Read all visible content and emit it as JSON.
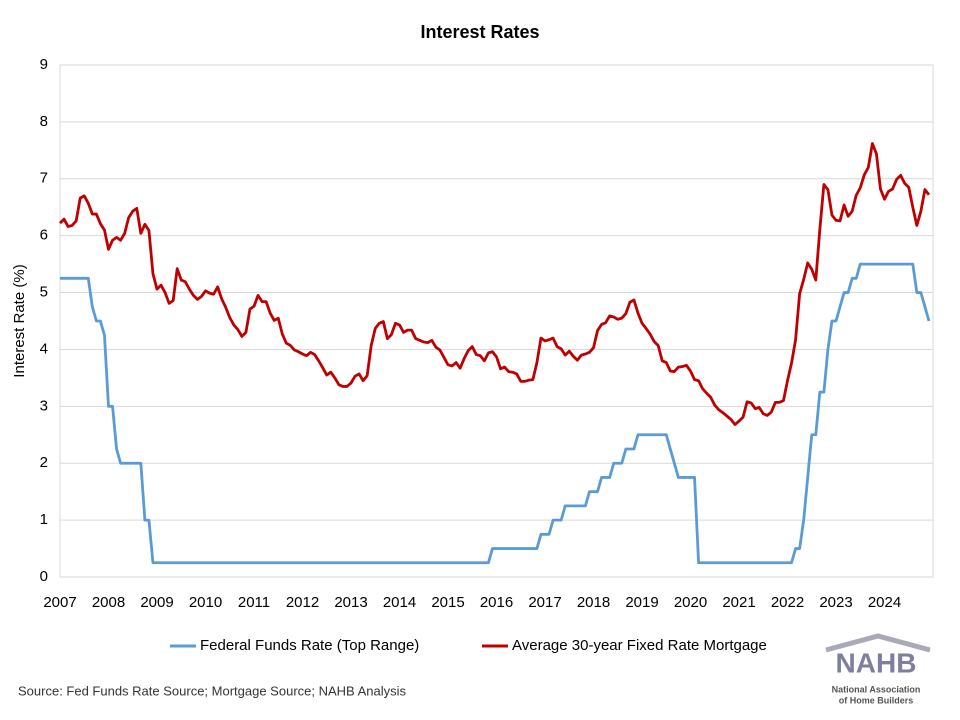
{
  "chart_data": {
    "type": "line",
    "title": "Interest Rates",
    "y_label": "Interest Rate (%)",
    "source": "Source: Fed Funds Rate Source; Mortgage Source; NAHB Analysis",
    "categories": [
      "2007",
      null,
      null,
      null,
      null,
      null,
      null,
      null,
      null,
      null,
      null,
      null,
      "2008",
      null,
      null,
      null,
      null,
      null,
      null,
      null,
      null,
      null,
      null,
      null,
      "2009",
      null,
      null,
      null,
      null,
      null,
      null,
      null,
      null,
      null,
      null,
      null,
      "2010",
      null,
      null,
      null,
      null,
      null,
      null,
      null,
      null,
      null,
      null,
      null,
      "2011",
      null,
      null,
      null,
      null,
      null,
      null,
      null,
      null,
      null,
      null,
      null,
      "2012",
      null,
      null,
      null,
      null,
      null,
      null,
      null,
      null,
      null,
      null,
      null,
      "2013",
      null,
      null,
      null,
      null,
      null,
      null,
      null,
      null,
      null,
      null,
      null,
      "2014",
      null,
      null,
      null,
      null,
      null,
      null,
      null,
      null,
      null,
      null,
      null,
      "2015",
      null,
      null,
      null,
      null,
      null,
      null,
      null,
      null,
      null,
      null,
      null,
      "2016",
      null,
      null,
      null,
      null,
      null,
      null,
      null,
      null,
      null,
      null,
      null,
      "2017",
      null,
      null,
      null,
      null,
      null,
      null,
      null,
      null,
      null,
      null,
      null,
      "2018",
      null,
      null,
      null,
      null,
      null,
      null,
      null,
      null,
      null,
      null,
      null,
      "2019",
      null,
      null,
      null,
      null,
      null,
      null,
      null,
      null,
      null,
      null,
      null,
      "2020",
      null,
      null,
      null,
      null,
      null,
      null,
      null,
      null,
      null,
      null,
      null,
      "2021",
      null,
      null,
      null,
      null,
      null,
      null,
      null,
      null,
      null,
      null,
      null,
      "2022",
      null,
      null,
      null,
      null,
      null,
      null,
      null,
      null,
      null,
      null,
      null,
      "2023",
      null,
      null,
      null,
      null,
      null,
      null,
      null,
      null,
      null,
      null,
      null,
      "2024",
      null,
      null,
      null,
      null,
      null,
      null,
      null,
      null,
      null,
      null,
      null
    ],
    "series": [
      {
        "name": "Federal Funds Rate (Top Range)",
        "color": "#5b9bd5",
        "values": [
          5.25,
          5.25,
          5.25,
          5.25,
          5.25,
          5.25,
          5.25,
          5.25,
          4.75,
          4.5,
          4.5,
          4.25,
          3.0,
          3.0,
          2.25,
          2.0,
          2.0,
          2.0,
          2.0,
          2.0,
          2.0,
          1.0,
          1.0,
          0.25,
          0.25,
          0.25,
          0.25,
          0.25,
          0.25,
          0.25,
          0.25,
          0.25,
          0.25,
          0.25,
          0.25,
          0.25,
          0.25,
          0.25,
          0.25,
          0.25,
          0.25,
          0.25,
          0.25,
          0.25,
          0.25,
          0.25,
          0.25,
          0.25,
          0.25,
          0.25,
          0.25,
          0.25,
          0.25,
          0.25,
          0.25,
          0.25,
          0.25,
          0.25,
          0.25,
          0.25,
          0.25,
          0.25,
          0.25,
          0.25,
          0.25,
          0.25,
          0.25,
          0.25,
          0.25,
          0.25,
          0.25,
          0.25,
          0.25,
          0.25,
          0.25,
          0.25,
          0.25,
          0.25,
          0.25,
          0.25,
          0.25,
          0.25,
          0.25,
          0.25,
          0.25,
          0.25,
          0.25,
          0.25,
          0.25,
          0.25,
          0.25,
          0.25,
          0.25,
          0.25,
          0.25,
          0.25,
          0.25,
          0.25,
          0.25,
          0.25,
          0.25,
          0.25,
          0.25,
          0.25,
          0.25,
          0.25,
          0.25,
          0.5,
          0.5,
          0.5,
          0.5,
          0.5,
          0.5,
          0.5,
          0.5,
          0.5,
          0.5,
          0.5,
          0.5,
          0.75,
          0.75,
          0.75,
          1.0,
          1.0,
          1.0,
          1.25,
          1.25,
          1.25,
          1.25,
          1.25,
          1.25,
          1.5,
          1.5,
          1.5,
          1.75,
          1.75,
          1.75,
          2.0,
          2.0,
          2.0,
          2.25,
          2.25,
          2.25,
          2.5,
          2.5,
          2.5,
          2.5,
          2.5,
          2.5,
          2.5,
          2.5,
          2.25,
          2.0,
          1.75,
          1.75,
          1.75,
          1.75,
          1.75,
          0.25,
          0.25,
          0.25,
          0.25,
          0.25,
          0.25,
          0.25,
          0.25,
          0.25,
          0.25,
          0.25,
          0.25,
          0.25,
          0.25,
          0.25,
          0.25,
          0.25,
          0.25,
          0.25,
          0.25,
          0.25,
          0.25,
          0.25,
          0.25,
          0.5,
          0.5,
          1.0,
          1.75,
          2.5,
          2.5,
          3.25,
          3.25,
          4.0,
          4.5,
          4.5,
          4.75,
          5.0,
          5.0,
          5.25,
          5.25,
          5.5,
          5.5,
          5.5,
          5.5,
          5.5,
          5.5,
          5.5,
          5.5,
          5.5,
          5.5,
          5.5,
          5.5,
          5.5,
          5.5,
          5.0,
          5.0,
          4.75,
          4.5
        ]
      },
      {
        "name": "Average 30-year Fixed Rate Mortgage",
        "color": "#c00000",
        "values": [
          6.22,
          6.29,
          6.16,
          6.18,
          6.26,
          6.66,
          6.7,
          6.57,
          6.38,
          6.38,
          6.21,
          6.1,
          5.76,
          5.92,
          5.97,
          5.92,
          6.04,
          6.32,
          6.43,
          6.48,
          6.04,
          6.2,
          6.09,
          5.33,
          5.06,
          5.13,
          5.0,
          4.81,
          4.86,
          5.42,
          5.22,
          5.19,
          5.06,
          4.95,
          4.88,
          4.93,
          5.03,
          4.99,
          4.97,
          5.1,
          4.89,
          4.74,
          4.56,
          4.43,
          4.35,
          4.23,
          4.3,
          4.71,
          4.76,
          4.95,
          4.84,
          4.84,
          4.64,
          4.51,
          4.55,
          4.27,
          4.11,
          4.07,
          3.99,
          3.96,
          3.92,
          3.89,
          3.95,
          3.91,
          3.8,
          3.68,
          3.55,
          3.6,
          3.5,
          3.38,
          3.35,
          3.35,
          3.41,
          3.53,
          3.57,
          3.45,
          3.54,
          4.07,
          4.37,
          4.46,
          4.49,
          4.19,
          4.26,
          4.46,
          4.43,
          4.3,
          4.34,
          4.34,
          4.19,
          4.16,
          4.13,
          4.12,
          4.16,
          4.04,
          3.99,
          3.86,
          3.73,
          3.71,
          3.77,
          3.67,
          3.84,
          3.98,
          4.05,
          3.91,
          3.89,
          3.8,
          3.94,
          3.96,
          3.87,
          3.66,
          3.69,
          3.61,
          3.6,
          3.57,
          3.44,
          3.44,
          3.46,
          3.47,
          3.77,
          4.2,
          4.15,
          4.17,
          4.2,
          4.05,
          4.01,
          3.9,
          3.97,
          3.88,
          3.81,
          3.9,
          3.92,
          3.95,
          4.03,
          4.33,
          4.44,
          4.47,
          4.59,
          4.57,
          4.53,
          4.55,
          4.63,
          4.83,
          4.87,
          4.64,
          4.46,
          4.37,
          4.27,
          4.14,
          4.07,
          3.8,
          3.77,
          3.62,
          3.61,
          3.69,
          3.7,
          3.72,
          3.62,
          3.47,
          3.45,
          3.31,
          3.23,
          3.16,
          3.02,
          2.94,
          2.89,
          2.83,
          2.77,
          2.68,
          2.74,
          2.81,
          3.08,
          3.06,
          2.96,
          2.98,
          2.87,
          2.84,
          2.9,
          3.07,
          3.07,
          3.1,
          3.45,
          3.76,
          4.17,
          4.98,
          5.23,
          5.52,
          5.41,
          5.22,
          6.11,
          6.9,
          6.81,
          6.36,
          6.27,
          6.26,
          6.54,
          6.34,
          6.43,
          6.71,
          6.84,
          7.07,
          7.2,
          7.62,
          7.44,
          6.82,
          6.64,
          6.78,
          6.82,
          6.99,
          7.06,
          6.92,
          6.85,
          6.5,
          6.18,
          6.43,
          6.81,
          6.72
        ]
      }
    ],
    "ylim": [
      0,
      9
    ],
    "yticks": [
      0,
      1,
      2,
      3,
      4,
      5,
      6,
      7,
      8,
      9
    ],
    "grid": true,
    "legend": "bottom",
    "logo": {
      "text": "NAHB",
      "caption": [
        "National Association",
        "of Home Builders"
      ]
    }
  }
}
